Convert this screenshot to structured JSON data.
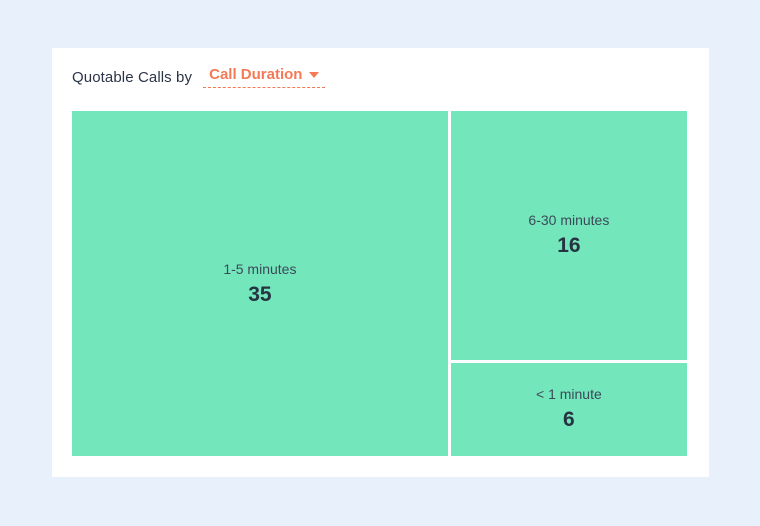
{
  "header": {
    "title": "Quotable Calls by",
    "dropdown_label": "Call Duration"
  },
  "colors": {
    "cell_fill": "#74e6bc",
    "accent": "#f47a57"
  },
  "chart_data": {
    "type": "treemap",
    "items": [
      {
        "label": "1-5 minutes",
        "value": 35
      },
      {
        "label": "6-30 minutes",
        "value": 16
      },
      {
        "label": "< 1 minute",
        "value": 6
      }
    ]
  }
}
